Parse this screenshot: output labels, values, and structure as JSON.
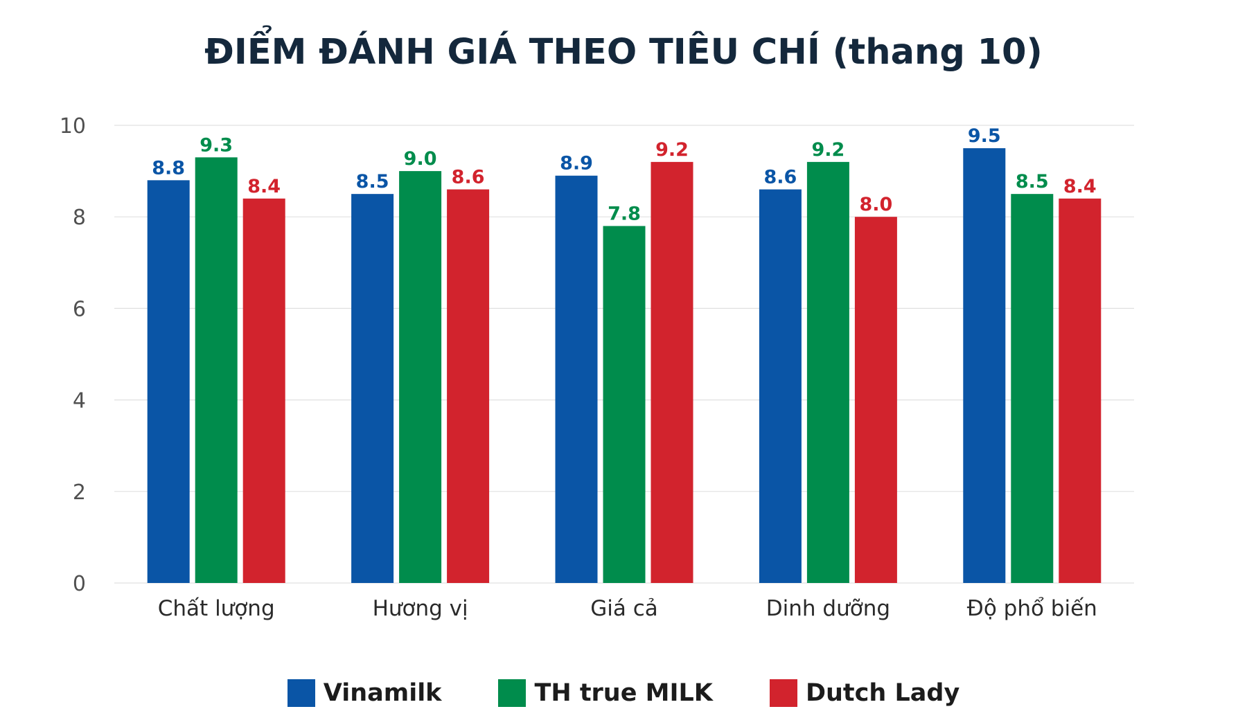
{
  "chart_data": {
    "type": "bar",
    "title": "ĐIỂM ĐÁNH GIÁ THEO TIÊU CHÍ (thang 10)",
    "xlabel": "",
    "ylabel": "",
    "categories": [
      "Chất lượng",
      "Hương vị",
      "Giá cả",
      "Dinh dưỡng",
      "Độ phổ biến"
    ],
    "series": [
      {
        "name": "Vinamilk",
        "values": [
          8.8,
          8.5,
          8.9,
          8.6,
          9.5
        ],
        "labels": [
          "8.8",
          "8.5",
          "8.9",
          "8.6",
          "9.5"
        ],
        "color": "#0a55a6"
      },
      {
        "name": "TH true MILK",
        "values": [
          9.3,
          9.0,
          7.8,
          9.2,
          8.5
        ],
        "labels": [
          "9.3",
          "9.0",
          "7.8",
          "9.2",
          "8.5"
        ],
        "color": "#008c4c"
      },
      {
        "name": "Dutch Lady",
        "values": [
          8.4,
          8.6,
          9.2,
          8.0,
          8.4
        ],
        "labels": [
          "8.4",
          "8.6",
          "9.2",
          "8.0",
          "8.4"
        ],
        "color": "#d2232d"
      }
    ],
    "ylim": [
      0,
      10
    ],
    "yticks": [
      "0",
      "2",
      "4",
      "6",
      "8",
      "10"
    ],
    "grid": true,
    "legend_position": "bottom-center"
  },
  "colors": {
    "title": "#14283c",
    "axis_text": "#505050",
    "category_text": "#2a2a2a",
    "grid": "#e0e0e0"
  }
}
